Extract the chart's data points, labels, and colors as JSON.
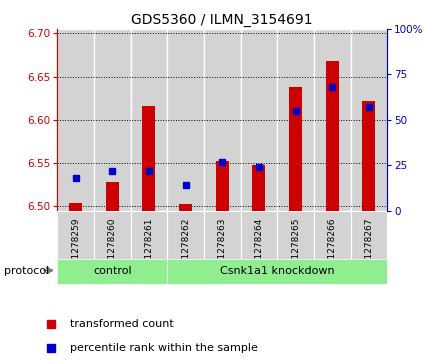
{
  "title": "GDS5360 / ILMN_3154691",
  "samples": [
    "GSM1278259",
    "GSM1278260",
    "GSM1278261",
    "GSM1278262",
    "GSM1278263",
    "GSM1278264",
    "GSM1278265",
    "GSM1278266",
    "GSM1278267"
  ],
  "red_values": [
    6.504,
    6.528,
    6.616,
    6.503,
    6.552,
    6.548,
    6.638,
    6.668,
    6.622
  ],
  "blue_values_pct": [
    18,
    22,
    22,
    14,
    27,
    24,
    55,
    68,
    57
  ],
  "ylim_left": [
    6.495,
    6.705
  ],
  "ylim_right": [
    0,
    100
  ],
  "yticks_left": [
    6.5,
    6.55,
    6.6,
    6.65,
    6.7
  ],
  "yticks_right": [
    0,
    25,
    50,
    75,
    100
  ],
  "ytick_labels_right": [
    "0",
    "25",
    "50",
    "75",
    "100%"
  ],
  "control_count": 3,
  "knockdown_count": 6,
  "control_label": "control",
  "knockdown_label": "Csnk1a1 knockdown",
  "protocol_label": "protocol",
  "legend_red_label": "transformed count",
  "legend_blue_label": "percentile rank within the sample",
  "bar_color": "#cc0000",
  "dot_color": "#0000cc",
  "left_axis_color": "#cc0000",
  "right_axis_color": "#0000cc",
  "grid_color": "#000000",
  "background_color": "#ffffff",
  "cell_bg_color": "#d3d3d3",
  "green_color": "#90EE90",
  "bar_bottom": 6.495,
  "bar_width": 0.35
}
